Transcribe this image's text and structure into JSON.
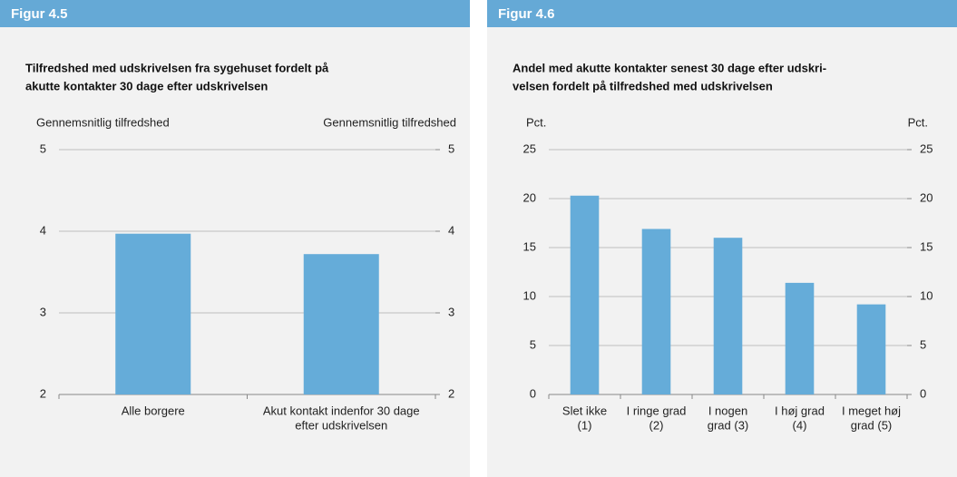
{
  "chart_data": [
    {
      "type": "bar",
      "figure_label": "Figur 4.5",
      "title": [
        "Tilfredshed med udskrivelsen fra sygehuset fordelt på",
        "akutte kontakter 30 dage efter udskrivelsen"
      ],
      "ylabel": "Gennemsnitlig tilfredshed",
      "y2label": "Gennemsnitlig tilfredshed",
      "categories": [
        [
          "Alle borgere"
        ],
        [
          "Akut kontakt indenfor 30 dage",
          "efter udskrivelsen"
        ]
      ],
      "values": [
        3.97,
        3.72
      ],
      "color": "#65acd9",
      "ylim": [
        2,
        5
      ],
      "yticks": [
        2,
        3,
        4,
        5
      ],
      "y2lim": [
        2,
        5
      ],
      "y2ticks": [
        2,
        3,
        4,
        5
      ],
      "grid": true
    },
    {
      "type": "bar",
      "figure_label": "Figur 4.6",
      "title": [
        "Andel med akutte kontakter senest 30 dage efter udskri-",
        "velsen fordelt på tilfredshed med udskrivelsen"
      ],
      "ylabel": "Pct.",
      "y2label": "Pct.",
      "categories": [
        [
          "Slet ikke",
          "(1)"
        ],
        [
          "I ringe grad",
          "(2)"
        ],
        [
          "I nogen",
          "grad (3)"
        ],
        [
          "I høj grad",
          "(4)"
        ],
        [
          "I meget høj",
          "grad (5)"
        ]
      ],
      "values": [
        20.3,
        16.9,
        16.0,
        11.4,
        9.2
      ],
      "color": "#65acd9",
      "ylim": [
        0,
        25
      ],
      "yticks": [
        0,
        5,
        10,
        15,
        20,
        25
      ],
      "y2lim": [
        0,
        25
      ],
      "y2ticks": [
        0,
        5,
        10,
        15,
        20,
        25
      ],
      "grid": true
    }
  ]
}
